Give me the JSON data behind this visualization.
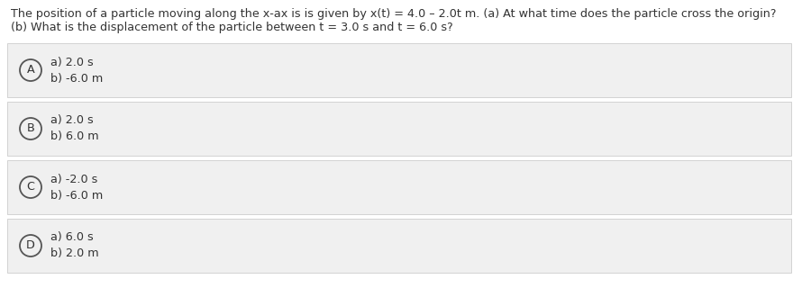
{
  "question_line1": "The position of a particle moving along the x-ax is is given by x(t) = 4.0 – 2.0t m. (a) At what time does the particle cross the origin?",
  "question_line2": "(b) What is the displacement of the particle between t = 3.0 s and t = 6.0 s?",
  "options": [
    {
      "label": "A",
      "line1": "a) 2.0 s",
      "line2": "b) -6.0 m"
    },
    {
      "label": "B",
      "line1": "a) 2.0 s",
      "line2": "b) 6.0 m"
    },
    {
      "label": "C",
      "line1": "a) -2.0 s",
      "line2": "b) -6.0 m"
    },
    {
      "label": "D",
      "line1": "a) 6.0 s",
      "line2": "b) 2.0 m"
    }
  ],
  "background_color": "#ffffff",
  "option_bg_color": "#f0f0f0",
  "option_border_color": "#cccccc",
  "text_color": "#333333",
  "circle_edge_color": "#555555",
  "question_fontsize": 9.2,
  "option_fontsize": 9.2,
  "label_fontsize": 9.2,
  "fig_width": 8.9,
  "fig_height": 3.3,
  "dpi": 100
}
